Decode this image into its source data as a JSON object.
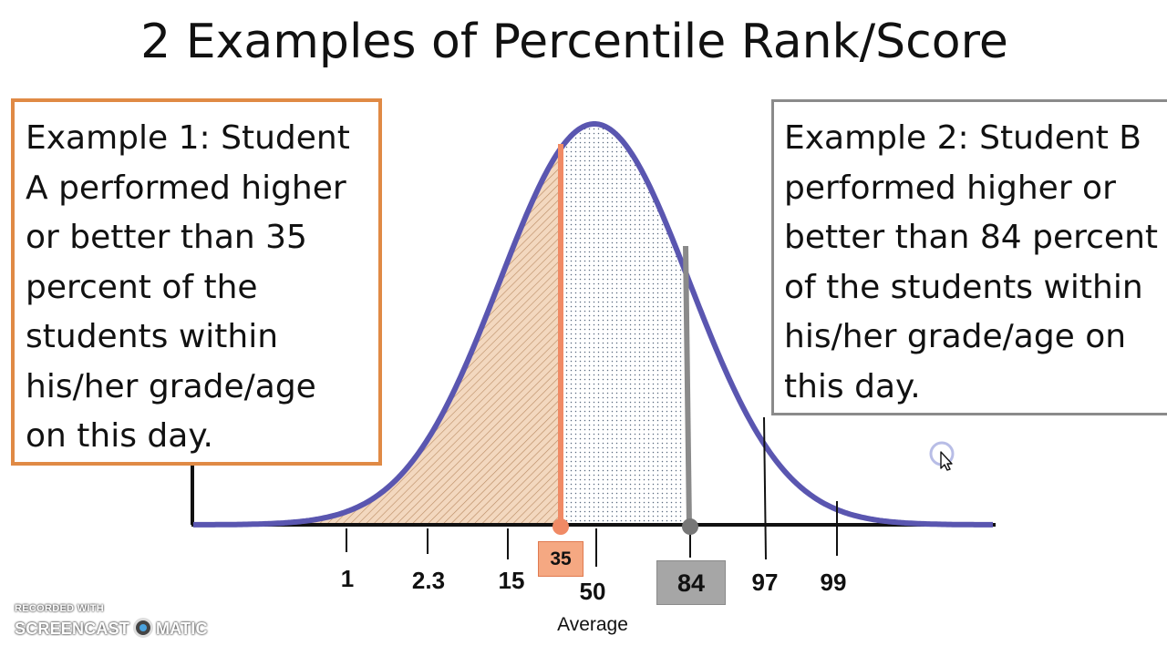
{
  "title": "2 Examples of Percentile Rank/Score",
  "example_1": {
    "lines": [
      "Example 1: Student",
      "A performed higher",
      "or better than 35",
      "percent of the",
      "students within",
      "his/her grade/age",
      "on this day."
    ]
  },
  "example_2": {
    "lines": [
      "Example 2: Student B",
      "performed higher or",
      "better than 84 percent",
      "of the students within",
      "his/her grade/age on",
      "this day."
    ]
  },
  "axis_ticks": [
    "1",
    "2.3",
    "15",
    "50",
    "97",
    "99"
  ],
  "marker_a": "35",
  "marker_b": "84",
  "average_label": "Average",
  "watermark": {
    "recorded_with": "RECORDED WITH",
    "brand_left": "SCREENCAST",
    "brand_right": "MATIC"
  },
  "colors": {
    "curve": "#5a56b0",
    "orange": "#e08a45",
    "orange_fill": "#f0c9a8",
    "gray": "#8a8a8a",
    "salmon": "#f5a882"
  }
}
